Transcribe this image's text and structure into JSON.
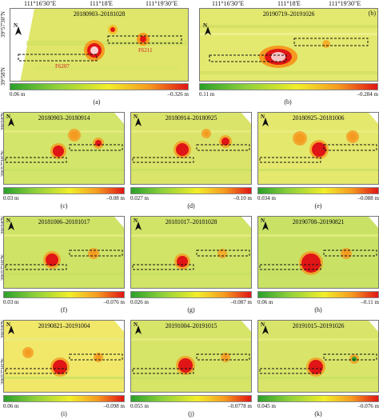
{
  "longitude_labels": [
    "111°16'30\"E",
    "111°18'E",
    "111°19'30\"E"
  ],
  "latitude_labels": [
    "39°57'30\"N",
    "39°58'N",
    "39°57'30\"N"
  ],
  "north_label": "N",
  "wells": [
    "F6207",
    "F6211"
  ],
  "panels": [
    {
      "label": "(a)",
      "dates": "20180903–20181028",
      "min": "0.06 m",
      "max": "–0.326 m"
    },
    {
      "label": "(b)",
      "dates": "20190719–20191026",
      "min": "0.11 m",
      "max": "–0.284 m"
    },
    {
      "label": "(c)",
      "dates": "20180903–20180914",
      "min": "0.03 m",
      "max": "–0.08 m"
    },
    {
      "label": "(d)",
      "dates": "20180914–20180925",
      "min": "0.027 m",
      "max": "–0.10 m"
    },
    {
      "label": "(e)",
      "dates": "20180925–20181006",
      "min": "0.034 m",
      "max": "–0.088 m"
    },
    {
      "label": "(f)",
      "dates": "20181006–20181017",
      "min": "0.03 m",
      "max": "–0.076 m"
    },
    {
      "label": "(g)",
      "dates": "20181017–20181028",
      "min": "0.026 m",
      "max": "–0.087 m"
    },
    {
      "label": "(h)",
      "dates": "20190708–20190821",
      "min": "0.06 m",
      "max": "–0.11 m"
    },
    {
      "label": "(i)",
      "dates": "20190821–20191004",
      "min": "0.06 m",
      "max": "–0.098 m"
    },
    {
      "label": "(j)",
      "dates": "20191004–20191015",
      "min": "0.055 m",
      "max": "–0.0778 m"
    },
    {
      "label": "(k)",
      "dates": "20191015–20191026",
      "min": "0.045 m",
      "max": "–0.076 m"
    }
  ],
  "colors": {
    "low": "#2aa02a",
    "mid": "#f2ee2a",
    "high": "#e01515",
    "map_base": "#dfe66a"
  }
}
